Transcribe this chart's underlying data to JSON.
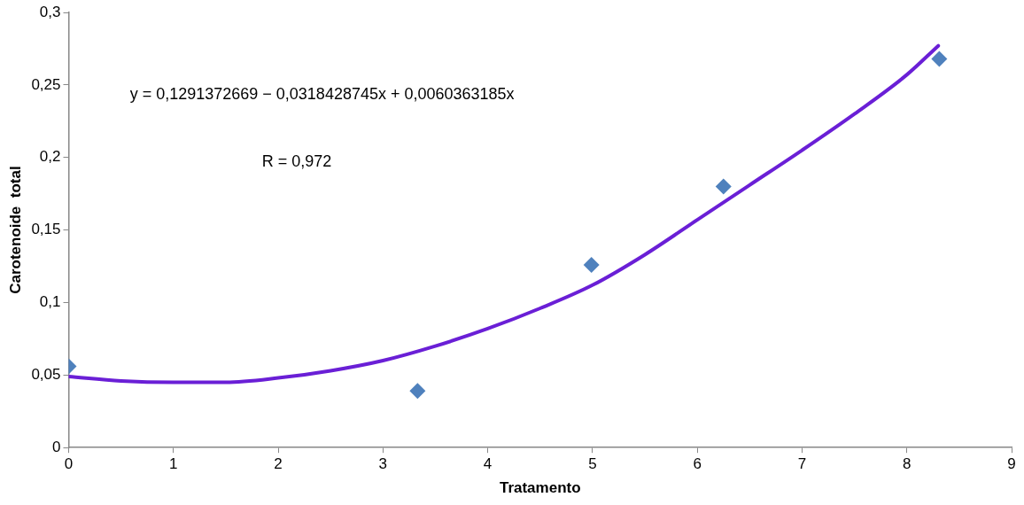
{
  "chart_data": {
    "type": "scatter",
    "xlabel": "Tratamento",
    "ylabel": "Carotenoide  total",
    "xlim": [
      0,
      9
    ],
    "xticks": [
      0,
      1,
      2,
      3,
      4,
      5,
      6,
      7,
      8,
      9
    ],
    "ylim": [
      0,
      0.3
    ],
    "yticks": [
      0,
      {
        "value": 0.05,
        "label": "0,05"
      },
      {
        "value": 0.1,
        "label": "0,1"
      },
      {
        "value": 0.15,
        "label": "0,15"
      },
      {
        "value": 0.2,
        "label": "0,2"
      },
      {
        "value": 0.25,
        "label": "0,25"
      },
      {
        "value": 0.3,
        "label": "0,3"
      }
    ],
    "grid": false,
    "legend": false,
    "series": [
      {
        "type": "scatter",
        "color": "#4f81bd",
        "marker": "diamond",
        "x": [
          0,
          3.33,
          4.99,
          6.25,
          8.31
        ],
        "values": [
          0.056,
          0.039,
          0.126,
          0.18,
          0.268
        ]
      },
      {
        "type": "line",
        "color": "#6a1fd6",
        "marker": "none",
        "line_style": "solid",
        "x": [
          0,
          0.5,
          1,
          1.5,
          2,
          2.5,
          3,
          3.5,
          4,
          4.5,
          5,
          5.5,
          6,
          6.5,
          7,
          7.5,
          8,
          8.3
        ],
        "values": [
          0.049,
          0.046,
          0.045,
          0.045,
          0.048,
          0.053,
          0.06,
          0.07,
          0.082,
          0.096,
          0.112,
          0.133,
          0.157,
          0.181,
          0.205,
          0.23,
          0.257,
          0.277
        ]
      }
    ],
    "annotations": [
      "y = 0,1291372669 − 0,0318428745x + 0,0060363185x",
      "R = 0,972"
    ]
  }
}
